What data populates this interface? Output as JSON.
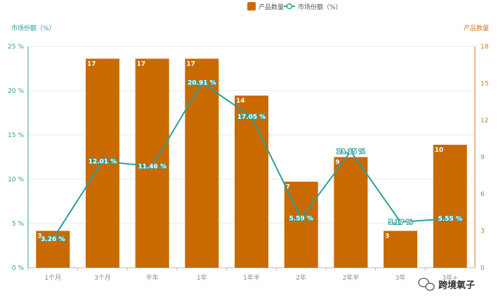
{
  "chart_data": {
    "type": "bar",
    "categories": [
      "1个月",
      "3个月",
      "半年",
      "1年",
      "1年半",
      "2年",
      "2年半",
      "3年",
      "3年+"
    ],
    "series": [
      {
        "name": "产品数量",
        "type": "bar",
        "axis": "right",
        "values": [
          3,
          17,
          17,
          17,
          14,
          7,
          9,
          3,
          10
        ],
        "labels": [
          "3",
          "17",
          "17",
          "17",
          "14",
          "7",
          "9",
          "3",
          "10"
        ]
      },
      {
        "name": "市场份额（%）",
        "type": "line",
        "axis": "left",
        "values": [
          3.26,
          12.01,
          11.46,
          20.91,
          17.05,
          5.59,
          13.15,
          5.17,
          5.55
        ],
        "labels": [
          "3.26 %",
          "12.01 %",
          "11.46 %",
          "20.91 %",
          "17.05 %",
          "5.59 %",
          "13.15 %",
          "5.17 %",
          "5.55 %"
        ]
      }
    ],
    "ylabel": "市场份额（%）",
    "y2label": "产品数量",
    "ylim": [
      0,
      25
    ],
    "y2lim": [
      0,
      18
    ],
    "yticks": [
      "0 %",
      "5 %",
      "10 %",
      "15 %",
      "20 %",
      "25 %"
    ],
    "y2ticks": [
      "0",
      "3",
      "6",
      "9",
      "12",
      "15",
      "18"
    ],
    "legend_position": "top-center",
    "colors": {
      "bar": "#c96a00",
      "line": "#2aa198",
      "grid": "#e8e8e8"
    }
  },
  "watermark": {
    "text": "跨境氧子",
    "icon": "wechat-icon"
  }
}
